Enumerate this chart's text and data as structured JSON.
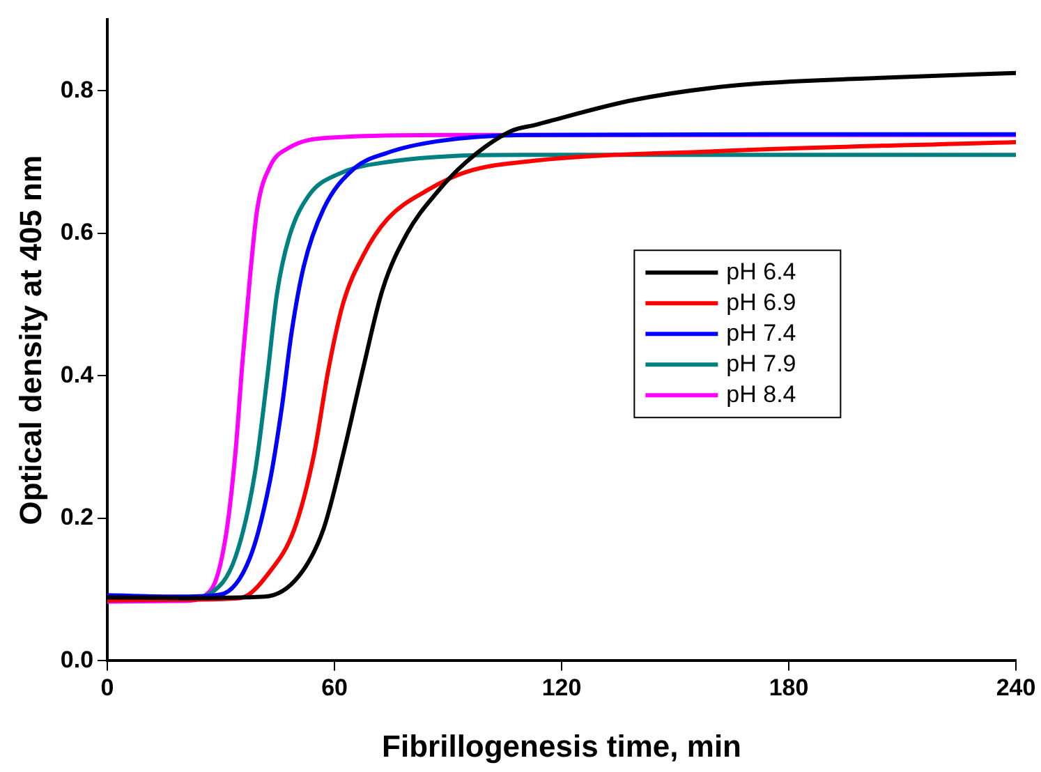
{
  "chart_data": {
    "type": "line",
    "xlabel": "Fibrillogenesis time, min",
    "ylabel": "Optical density at 405 nm",
    "xlim": [
      0,
      240
    ],
    "ylim": [
      0,
      0.9
    ],
    "xticks": [
      0,
      60,
      120,
      180,
      240
    ],
    "yticks": [
      {
        "value": 0,
        "label": "0.0"
      },
      {
        "value": 0.2,
        "label": "0.2"
      },
      {
        "value": 0.4,
        "label": "0.4"
      },
      {
        "value": 0.6,
        "label": "0.6"
      },
      {
        "value": 0.8,
        "label": "0.8"
      }
    ],
    "grid": false,
    "legend": "right",
    "marker": "none",
    "line_style": "solid",
    "series": [
      {
        "name": "pH 6.4",
        "color": "#000000",
        "x": [
          0,
          20,
          41.6,
          50.6,
          57.1,
          62.3,
          67.5,
          72.7,
          79.2,
          87,
          94.8,
          106.5,
          113,
          139,
          165,
          204,
          240
        ],
        "values": [
          0.089,
          0.088,
          0.09,
          0.119,
          0.185,
          0.29,
          0.409,
          0.521,
          0.6,
          0.657,
          0.7,
          0.743,
          0.752,
          0.787,
          0.807,
          0.818,
          0.825
        ]
      },
      {
        "name": "pH 6.9",
        "color": "#ff0000",
        "x": [
          0,
          20,
          35,
          42.9,
          49.4,
          54.6,
          58.4,
          62.3,
          67.5,
          74,
          84.4,
          94.8,
          113,
          160,
          240
        ],
        "values": [
          0.085,
          0.086,
          0.088,
          0.125,
          0.185,
          0.29,
          0.409,
          0.502,
          0.568,
          0.62,
          0.66,
          0.686,
          0.702,
          0.715,
          0.728
        ]
      },
      {
        "name": "pH 7.4",
        "color": "#0000ff",
        "x": [
          0,
          20,
          29.9,
          37.7,
          42.9,
          46.1,
          48.7,
          51.9,
          57.1,
          65,
          74,
          87,
          110,
          240
        ],
        "values": [
          0.092,
          0.09,
          0.093,
          0.145,
          0.251,
          0.356,
          0.462,
          0.554,
          0.634,
          0.69,
          0.713,
          0.729,
          0.738,
          0.739
        ]
      },
      {
        "name": "pH 7.9",
        "color": "#008080",
        "x": [
          0,
          20,
          27.3,
          33.8,
          39,
          42.2,
          44.8,
          48,
          53.2,
          61,
          74,
          110,
          240
        ],
        "values": [
          0.085,
          0.086,
          0.095,
          0.145,
          0.264,
          0.396,
          0.515,
          0.594,
          0.653,
          0.683,
          0.7,
          0.71,
          0.71
        ]
      },
      {
        "name": "pH 8.4",
        "color": "#ff00ff",
        "x": [
          0,
          20,
          27.3,
          31.2,
          33.8,
          35.7,
          37.7,
          39.6,
          42.9,
          48,
          58.4,
          90,
          240
        ],
        "values": [
          0.083,
          0.084,
          0.099,
          0.172,
          0.29,
          0.42,
          0.54,
          0.634,
          0.693,
          0.72,
          0.734,
          0.738,
          0.738
        ]
      }
    ]
  }
}
